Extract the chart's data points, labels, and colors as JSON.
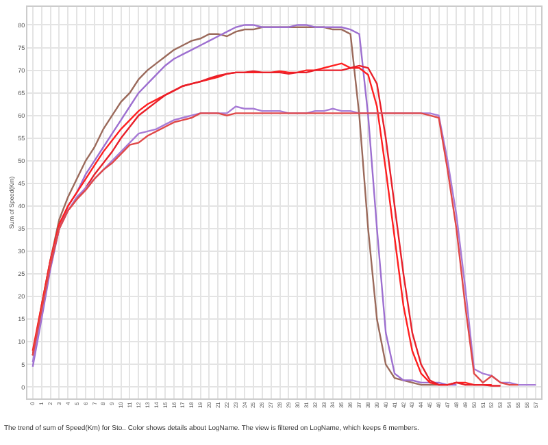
{
  "chart_data": {
    "type": "line",
    "ylabel": "Sum of Speed(Km)",
    "annotations": [
      "The trend of sum of Speed(Km) for Sto.. Color shows details about LogName. The view is filtered on LogName, which keeps 6 members."
    ],
    "categories": [
      "0",
      "1",
      "2",
      "3",
      "4",
      "5",
      "6",
      "7",
      "8",
      "9",
      "10",
      "11",
      "12",
      "13",
      "14",
      "15",
      "16",
      "17",
      "18",
      "19",
      "20",
      "21",
      "22",
      "23",
      "24",
      "25",
      "26",
      "27",
      "28",
      "29",
      "30",
      "31",
      "32",
      "33",
      "34",
      "35",
      "36",
      "37",
      "38",
      "39",
      "40",
      "41",
      "42",
      "43",
      "44",
      "45",
      "46",
      "47",
      "48",
      "49",
      "50",
      "51",
      "52",
      "53",
      "54",
      "55",
      "56",
      "57"
    ],
    "ylim": [
      -2.5,
      84
    ],
    "yticks": [
      0,
      5,
      10,
      15,
      20,
      25,
      30,
      35,
      40,
      45,
      50,
      55,
      60,
      65,
      70,
      75,
      80
    ],
    "grid": true,
    "marker": "none",
    "line_style": "solid",
    "series": [
      {
        "color": "#9b6a5b",
        "values": [
          7,
          18,
          28,
          37,
          42,
          46,
          50,
          53,
          57,
          60,
          63,
          65,
          68,
          70,
          71.5,
          73,
          74.5,
          75.5,
          76.5,
          77,
          78,
          78,
          77.5,
          78.5,
          79,
          79,
          79.5,
          79.5,
          79.5,
          79.5,
          79.5,
          79.5,
          79.5,
          79.5,
          79,
          79,
          78,
          60,
          35,
          15,
          5,
          2,
          1.5,
          1,
          0.5,
          0.5,
          0.5,
          null,
          null,
          null,
          null,
          null,
          null,
          null,
          null,
          null,
          null,
          null
        ]
      },
      {
        "color": "#9d6fd0",
        "values": [
          4.5,
          15,
          26,
          35,
          40,
          43,
          47,
          50,
          53,
          56,
          59,
          62,
          65,
          67,
          69,
          71,
          72.5,
          73.5,
          74.5,
          75.5,
          76.5,
          77.5,
          78.5,
          79.5,
          80,
          80,
          79.5,
          79.5,
          79.5,
          79.5,
          80,
          80,
          79.5,
          79.5,
          79.5,
          79.5,
          79,
          78,
          60,
          35,
          12,
          3,
          1.5,
          1.5,
          1,
          1,
          1,
          0.5,
          0.5,
          null,
          null,
          null,
          null,
          null,
          null,
          null,
          null,
          null
        ]
      },
      {
        "color": "#ff1f1f",
        "values": [
          8,
          18,
          28,
          36,
          40,
          43,
          46,
          49,
          52,
          54.5,
          57,
          59,
          61,
          62.5,
          63.5,
          64.5,
          65.5,
          66.5,
          67,
          67.5,
          68,
          68.5,
          69.2,
          69.5,
          69.5,
          69.5,
          69.5,
          69.5,
          69.8,
          69.5,
          69.5,
          70,
          70,
          70.5,
          71,
          71.5,
          70.5,
          70.5,
          69,
          62,
          48,
          33,
          18,
          8,
          3,
          1,
          0.5,
          0.5,
          1,
          1,
          0.5,
          0.5,
          0.5,
          null,
          null,
          null,
          null,
          null
        ]
      },
      {
        "color": "#e8202a",
        "values": [
          7,
          17,
          27,
          35,
          39,
          41.5,
          44,
          47,
          49.5,
          52,
          55,
          57.5,
          60,
          61.5,
          63,
          64.5,
          65.5,
          66.5,
          67,
          67.5,
          68.2,
          68.8,
          69.2,
          69.5,
          69.5,
          69.8,
          69.5,
          69.5,
          69.5,
          69.2,
          69.5,
          69.5,
          70,
          70,
          70,
          70,
          70.5,
          71,
          70.5,
          67,
          55,
          40,
          25,
          12,
          5,
          1.5,
          0.5,
          0.5,
          1,
          0.5,
          0.5,
          0.5,
          0.3,
          0.3,
          null,
          null,
          null,
          null
        ]
      },
      {
        "color": "#a77bd6",
        "values": [
          5.5,
          16,
          27,
          35,
          39,
          42,
          44,
          46,
          48,
          50,
          52,
          54,
          56,
          56.5,
          57,
          58,
          59,
          59.5,
          60,
          60.5,
          60.5,
          60.5,
          60.5,
          62,
          61.5,
          61.5,
          61,
          61,
          61,
          60.5,
          60.5,
          60.5,
          61,
          61,
          61.5,
          61,
          61,
          60.5,
          60.5,
          60.5,
          60.5,
          60.5,
          60.5,
          60.5,
          60.5,
          60.5,
          60,
          50,
          38,
          22,
          4,
          3,
          2.5,
          1,
          1,
          0.5,
          0.5,
          0.5
        ]
      },
      {
        "color": "#e04848",
        "values": [
          7,
          17,
          27,
          35,
          39,
          41.5,
          43.5,
          46,
          48,
          49.5,
          51.5,
          53.5,
          54,
          55.5,
          56.5,
          57.5,
          58.5,
          59,
          59.5,
          60.5,
          60.5,
          60.5,
          60,
          60.5,
          60.5,
          60.5,
          60.5,
          60.5,
          60.5,
          60.5,
          60.5,
          60.5,
          60.5,
          60.5,
          60.5,
          60.5,
          60.5,
          60.5,
          60.5,
          60.5,
          60.5,
          60.5,
          60.5,
          60.5,
          60.5,
          60,
          59.5,
          48,
          35,
          18,
          3,
          1,
          2.5,
          1,
          0.5,
          0.5,
          null,
          null
        ]
      }
    ]
  }
}
